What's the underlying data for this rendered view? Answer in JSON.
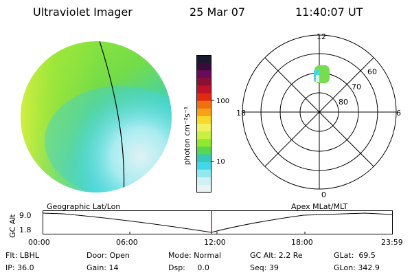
{
  "header": {
    "instrument": "Ultraviolet Imager",
    "date": "25 Mar 07",
    "time": "11:40:07 UT"
  },
  "colorbar": {
    "label": "photon cm⁻²s⁻¹",
    "ticks": [
      "100",
      "10"
    ],
    "colors": [
      "#1a1a2e",
      "#3a0a3a",
      "#6a0a5a",
      "#8a1030",
      "#c0102a",
      "#e02a10",
      "#f07010",
      "#f8a018",
      "#f8d828",
      "#f0f060",
      "#c8f040",
      "#90e830",
      "#58d850",
      "#38c8b8",
      "#40d8e8",
      "#90e8f0",
      "#d0f0f4",
      "#e8f4f4"
    ]
  },
  "polar_plot": {
    "mlt_labels": {
      "top": "12",
      "left": "18",
      "right": "6",
      "bottom": "0"
    },
    "lat_labels": [
      "60",
      "70",
      "80"
    ]
  },
  "timeline": {
    "left_label": "Geographic Lat/Lon",
    "right_label": "Apex MLat/MLT",
    "y_axis_label": "GC Alt",
    "y_ticks": [
      "9.0",
      "1.8"
    ],
    "x_ticks": [
      "00:00",
      "06:00",
      "12:00",
      "18:00",
      "23:59"
    ]
  },
  "status": {
    "flt": "Flt: LBHL",
    "ip": "IP: 36.0",
    "door": "Door: Open",
    "gain": "Gain: 14",
    "mode": "Mode: Normal",
    "dsp": "Dsp:     0.0",
    "gc_alt": "GC Alt: 2.2 Re",
    "seq": "Seq: 39",
    "glat": "GLat:  69.5",
    "glon": "GLon: 342.9"
  }
}
